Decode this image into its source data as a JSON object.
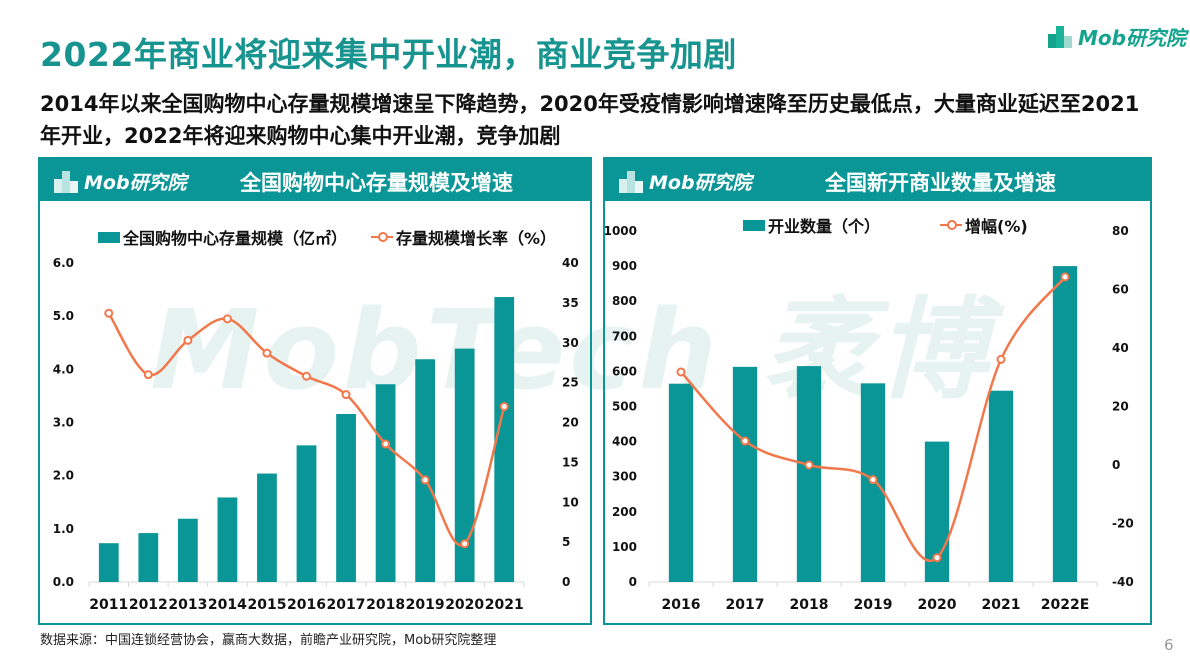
{
  "header": {
    "title": "2022年商业将迎来集中开业潮，商业竞争加剧",
    "subtitle": "2014年以来全国购物中心存量规模增速呈下降趋势，2020年受疫情影响增速降至历史最低点，大量商业延迟至2021年开业，2022年将迎来购物中心集中开业潮，竞争加剧",
    "logo_text": "Mob研究院"
  },
  "watermark": "MobTech 袤博",
  "colors": {
    "bar": "#0a9697",
    "line": "#f2784b",
    "title": "#17948f"
  },
  "chart_data": [
    {
      "type": "bar+line",
      "title": "全国购物中心存量规模及增速",
      "legend_position": "top",
      "categories": [
        "2011",
        "2012",
        "2013",
        "2014",
        "2015",
        "2016",
        "2017",
        "2018",
        "2019",
        "2020",
        "2021"
      ],
      "series": [
        {
          "name": "全国购物中心存量规模（亿㎡）",
          "type": "bar",
          "axis": "left",
          "values": [
            0.73,
            0.92,
            1.19,
            1.59,
            2.04,
            2.57,
            3.16,
            3.72,
            4.19,
            4.39,
            5.36
          ]
        },
        {
          "name": "存量规模增长率（%）",
          "type": "line",
          "axis": "right",
          "values": [
            33.7,
            26.0,
            30.3,
            33.0,
            28.7,
            25.8,
            23.5,
            17.3,
            12.8,
            4.8,
            22.0
          ]
        }
      ],
      "y_left": {
        "range": [
          0,
          6
        ],
        "ticks": [
          "0.0",
          "1.0",
          "2.0",
          "3.0",
          "4.0",
          "5.0",
          "6.0"
        ]
      },
      "y_right": {
        "range": [
          0,
          40
        ],
        "ticks": [
          "0",
          "5",
          "10",
          "15",
          "20",
          "25",
          "30",
          "35",
          "40"
        ]
      },
      "grid": false
    },
    {
      "type": "bar+line",
      "title": "全国新开商业数量及增速",
      "legend_position": "top",
      "categories": [
        "2016",
        "2017",
        "2018",
        "2019",
        "2020",
        "2021",
        "2022E"
      ],
      "series": [
        {
          "name": "开业数量（个）",
          "type": "bar",
          "axis": "left",
          "values": [
            565,
            613,
            615,
            566,
            400,
            545,
            900
          ]
        },
        {
          "name": "增幅(%)",
          "type": "line",
          "axis": "right",
          "values": [
            31.8,
            8.2,
            0,
            -5.0,
            -31.7,
            36.1,
            64.3
          ]
        }
      ],
      "y_left": {
        "range": [
          0,
          1000
        ],
        "ticks": [
          "0",
          "100",
          "200",
          "300",
          "400",
          "500",
          "600",
          "700",
          "800",
          "900",
          "1000"
        ]
      },
      "y_right": {
        "range": [
          -40,
          80
        ],
        "ticks": [
          "-40",
          "-20",
          "0",
          "20",
          "40",
          "60",
          "80"
        ]
      },
      "grid": false
    }
  ],
  "footer": {
    "source": "数据来源：中国连锁经营协会，赢商大数据，前瞻产业研究院，Mob研究院整理",
    "page_number": "6"
  }
}
